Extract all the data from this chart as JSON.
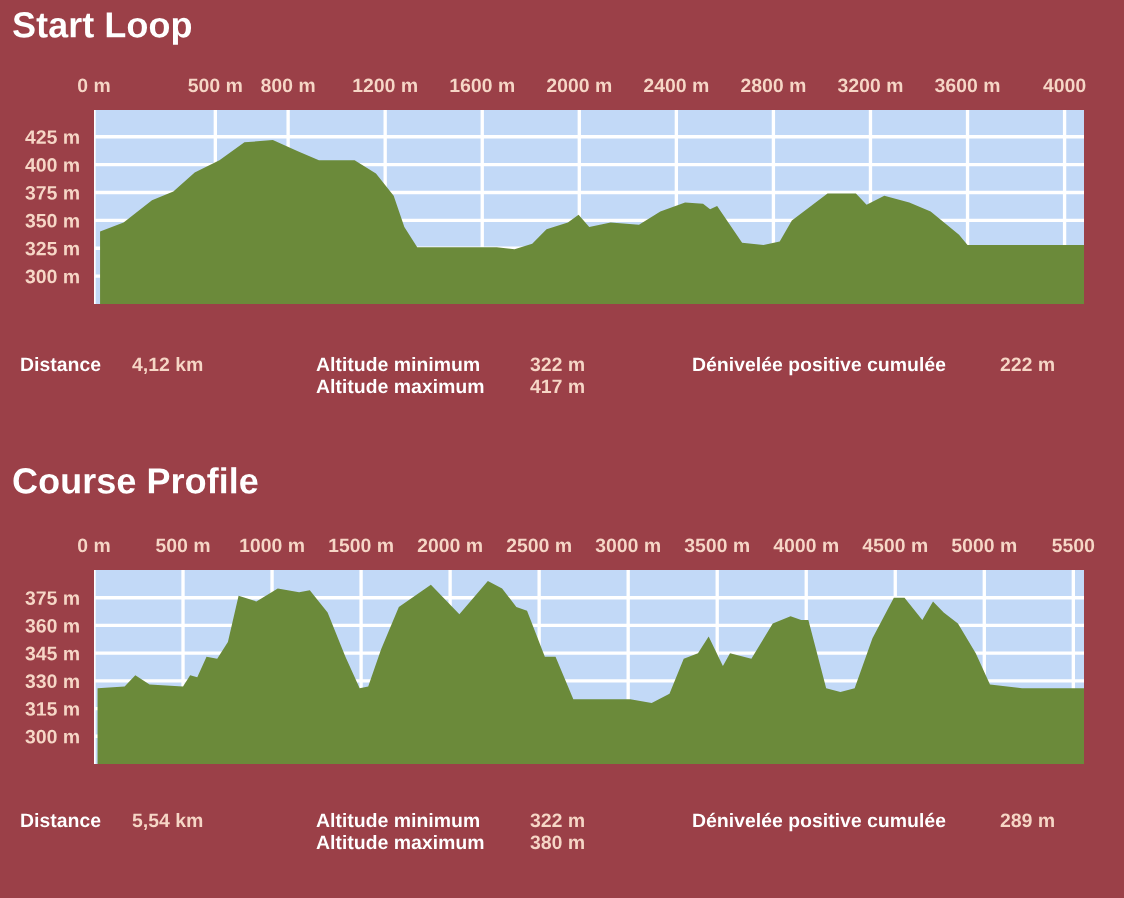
{
  "chart_data": [
    {
      "type": "area",
      "title": "Start Loop",
      "color": "#6b8a3a",
      "x": [
        25,
        122,
        239,
        327,
        415,
        517,
        620,
        737,
        840,
        927,
        1074,
        1162,
        1235,
        1279,
        1332,
        1660,
        1733,
        1806,
        1865,
        1953,
        1997,
        2041,
        2129,
        2246,
        2334,
        2436,
        2510,
        2539,
        2568,
        2671,
        2759,
        2826,
        2876,
        3023,
        3140,
        3184,
        3257,
        3360,
        3448,
        3565,
        3600,
        4080
      ],
      "values": [
        340,
        348,
        368,
        376,
        393,
        404,
        420,
        422,
        412,
        404,
        404,
        392,
        372,
        344,
        326,
        326,
        324,
        329,
        342,
        348,
        355,
        344,
        348,
        346,
        358,
        366,
        365,
        360,
        363,
        330,
        328,
        331,
        350,
        374,
        374,
        364,
        372,
        366,
        358,
        337,
        328,
        328
      ],
      "xlim": [
        0,
        4080
      ],
      "ylim": [
        275,
        449
      ],
      "bands": [
        {
          "axis": "y",
          "from": 275,
          "to": 449,
          "color": "#c2d9f7"
        }
      ],
      "xticks": [
        {
          "value": 0,
          "label": "0 m"
        },
        {
          "value": 500,
          "label": "500 m"
        },
        {
          "value": 800,
          "label": "800 m"
        },
        {
          "value": 1200,
          "label": "1200 m"
        },
        {
          "value": 1600,
          "label": "1600 m"
        },
        {
          "value": 2000,
          "label": "2000 m"
        },
        {
          "value": 2400,
          "label": "2400 m"
        },
        {
          "value": 2800,
          "label": "2800 m"
        },
        {
          "value": 3200,
          "label": "3200 m"
        },
        {
          "value": 3600,
          "label": "3600 m"
        },
        4000
      ],
      "yticks": [
        {
          "value": 300,
          "label": "300 m"
        },
        {
          "value": 325,
          "label": "325 m"
        },
        {
          "value": 350,
          "label": "350 m"
        },
        {
          "value": 375,
          "label": "375 m"
        },
        {
          "value": 400,
          "label": "400 m"
        },
        {
          "value": 425,
          "label": "425 m"
        }
      ],
      "grid": true,
      "annotations": [
        "Distance",
        "4,12 km",
        "Altitude minimum",
        "322 m",
        "Altitude maximum",
        "417 m",
        "Dénivelée positive cumulée",
        "222 m"
      ]
    },
    {
      "type": "area",
      "title": "Course Profile",
      "color": "#6b8a3a",
      "x": [
        20,
        172,
        232,
        312,
        500,
        540,
        580,
        632,
        692,
        752,
        812,
        912,
        1032,
        1152,
        1212,
        1312,
        1412,
        1492,
        1540,
        1612,
        1712,
        1892,
        2052,
        2212,
        2292,
        2372,
        2432,
        2532,
        2592,
        2692,
        2812,
        3012,
        3132,
        3232,
        3312,
        3392,
        3452,
        3532,
        3572,
        3692,
        3812,
        3912,
        3972,
        4012,
        4112,
        4192,
        4272,
        4372,
        4492,
        4552,
        4652,
        4712,
        4772,
        4852,
        4952,
        5032,
        5212,
        5560
      ],
      "values": [
        326,
        327,
        333,
        328,
        327,
        333,
        332,
        343,
        342,
        351,
        376,
        373,
        380,
        378,
        379,
        367,
        343,
        326,
        327,
        347,
        370,
        382,
        366,
        384,
        380,
        370,
        368,
        343,
        343,
        320,
        320,
        320,
        318,
        323,
        342,
        345,
        354,
        338,
        345,
        342,
        361,
        365,
        363,
        363,
        326,
        324,
        326,
        353,
        375,
        375,
        363,
        373,
        367,
        361,
        345,
        328,
        326,
        326
      ],
      "xlim": [
        0,
        5560
      ],
      "ylim": [
        285,
        390
      ],
      "bands": [
        {
          "axis": "y",
          "from": 285,
          "to": 390,
          "color": "#c2d9f7"
        }
      ],
      "xticks": [
        {
          "value": 0,
          "label": "0 m"
        },
        {
          "value": 500,
          "label": "500 m"
        },
        {
          "value": 1000,
          "label": "1000 m"
        },
        {
          "value": 1500,
          "label": "1500 m"
        },
        {
          "value": 2000,
          "label": "2000 m"
        },
        {
          "value": 2500,
          "label": "2500 m"
        },
        {
          "value": 3000,
          "label": "3000 m"
        },
        {
          "value": 3500,
          "label": "3500 m"
        },
        {
          "value": 4000,
          "label": "4000 m"
        },
        {
          "value": 4500,
          "label": "4500 m"
        },
        {
          "value": 5000,
          "label": "5000 m"
        },
        5500
      ],
      "yticks": [
        {
          "value": 300,
          "label": "300 m"
        },
        {
          "value": 315,
          "label": "315 m"
        },
        {
          "value": 330,
          "label": "330 m"
        },
        {
          "value": 345,
          "label": "345 m"
        },
        {
          "value": 360,
          "label": "360 m"
        },
        {
          "value": 375,
          "label": "375 m"
        }
      ],
      "grid": true,
      "annotations": [
        "Distance",
        "5,54 km",
        "Altitude minimum",
        "322 m",
        "Altitude maximum",
        "380 m",
        "Dénivelée positive cumulée",
        "289 m"
      ]
    }
  ]
}
